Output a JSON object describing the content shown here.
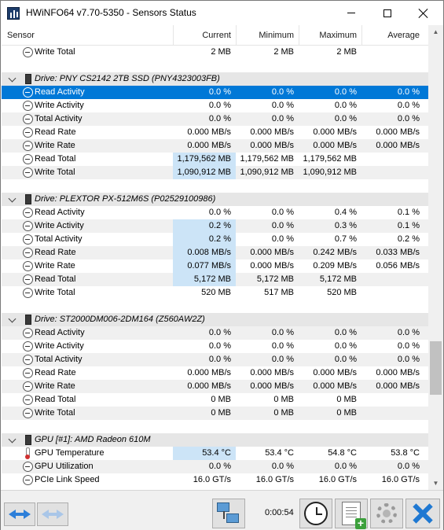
{
  "window": {
    "title": "HWiNFO64 v7.70-5350 - Sensors Status"
  },
  "columns": {
    "sensor": "Sensor",
    "current": "Current",
    "minimum": "Minimum",
    "maximum": "Maximum",
    "average": "Average"
  },
  "rows": [
    {
      "type": "item",
      "icon": "clock",
      "name": "Write Total",
      "cur": "2 MB",
      "min": "2 MB",
      "max": "2 MB",
      "avg": ""
    },
    {
      "type": "blank"
    },
    {
      "type": "group",
      "icon": "drive",
      "name": "Drive: PNY CS2142 2TB SSD (PNY4323003FB)"
    },
    {
      "type": "item",
      "icon": "clock",
      "name": "Read Activity",
      "cur": "0.0 %",
      "min": "0.0 %",
      "max": "0.0 %",
      "avg": "0.0 %",
      "selected": true
    },
    {
      "type": "item",
      "icon": "clock",
      "name": "Write Activity",
      "cur": "0.0 %",
      "min": "0.0 %",
      "max": "0.0 %",
      "avg": "0.0 %"
    },
    {
      "type": "item",
      "icon": "clock",
      "name": "Total Activity",
      "cur": "0.0 %",
      "min": "0.0 %",
      "max": "0.0 %",
      "avg": "0.0 %"
    },
    {
      "type": "item",
      "icon": "clock",
      "name": "Read Rate",
      "cur": "0.000 MB/s",
      "min": "0.000 MB/s",
      "max": "0.000 MB/s",
      "avg": "0.000 MB/s"
    },
    {
      "type": "item",
      "icon": "clock",
      "name": "Write Rate",
      "cur": "0.000 MB/s",
      "min": "0.000 MB/s",
      "max": "0.000 MB/s",
      "avg": "0.000 MB/s"
    },
    {
      "type": "item",
      "icon": "clock",
      "name": "Read Total",
      "cur": "1,179,562 MB",
      "min": "1,179,562 MB",
      "max": "1,179,562 MB",
      "avg": "",
      "hl": true
    },
    {
      "type": "item",
      "icon": "clock",
      "name": "Write Total",
      "cur": "1,090,912 MB",
      "min": "1,090,912 MB",
      "max": "1,090,912 MB",
      "avg": "",
      "hl": true
    },
    {
      "type": "blank"
    },
    {
      "type": "group",
      "icon": "drive",
      "name": "Drive: PLEXTOR PX-512M6S (P02529100986)"
    },
    {
      "type": "item",
      "icon": "clock",
      "name": "Read Activity",
      "cur": "0.0 %",
      "min": "0.0 %",
      "max": "0.4 %",
      "avg": "0.1 %"
    },
    {
      "type": "item",
      "icon": "clock",
      "name": "Write Activity",
      "cur": "0.2 %",
      "min": "0.0 %",
      "max": "0.3 %",
      "avg": "0.1 %",
      "hl": true
    },
    {
      "type": "item",
      "icon": "clock",
      "name": "Total Activity",
      "cur": "0.2 %",
      "min": "0.0 %",
      "max": "0.7 %",
      "avg": "0.2 %",
      "hl": true
    },
    {
      "type": "item",
      "icon": "clock",
      "name": "Read Rate",
      "cur": "0.008 MB/s",
      "min": "0.000 MB/s",
      "max": "0.242 MB/s",
      "avg": "0.033 MB/s",
      "hl": true
    },
    {
      "type": "item",
      "icon": "clock",
      "name": "Write Rate",
      "cur": "0.077 MB/s",
      "min": "0.000 MB/s",
      "max": "0.209 MB/s",
      "avg": "0.056 MB/s",
      "hl": true
    },
    {
      "type": "item",
      "icon": "clock",
      "name": "Read Total",
      "cur": "5,172 MB",
      "min": "5,172 MB",
      "max": "5,172 MB",
      "avg": "",
      "hl": true
    },
    {
      "type": "item",
      "icon": "clock",
      "name": "Write Total",
      "cur": "520 MB",
      "min": "517 MB",
      "max": "520 MB",
      "avg": ""
    },
    {
      "type": "blank"
    },
    {
      "type": "group",
      "icon": "drive",
      "name": "Drive: ST2000DM006-2DM164 (Z560AW2Z)"
    },
    {
      "type": "item",
      "icon": "clock",
      "name": "Read Activity",
      "cur": "0.0 %",
      "min": "0.0 %",
      "max": "0.0 %",
      "avg": "0.0 %"
    },
    {
      "type": "item",
      "icon": "clock",
      "name": "Write Activity",
      "cur": "0.0 %",
      "min": "0.0 %",
      "max": "0.0 %",
      "avg": "0.0 %"
    },
    {
      "type": "item",
      "icon": "clock",
      "name": "Total Activity",
      "cur": "0.0 %",
      "min": "0.0 %",
      "max": "0.0 %",
      "avg": "0.0 %"
    },
    {
      "type": "item",
      "icon": "clock",
      "name": "Read Rate",
      "cur": "0.000 MB/s",
      "min": "0.000 MB/s",
      "max": "0.000 MB/s",
      "avg": "0.000 MB/s"
    },
    {
      "type": "item",
      "icon": "clock",
      "name": "Write Rate",
      "cur": "0.000 MB/s",
      "min": "0.000 MB/s",
      "max": "0.000 MB/s",
      "avg": "0.000 MB/s"
    },
    {
      "type": "item",
      "icon": "clock",
      "name": "Read Total",
      "cur": "0 MB",
      "min": "0 MB",
      "max": "0 MB",
      "avg": ""
    },
    {
      "type": "item",
      "icon": "clock",
      "name": "Write Total",
      "cur": "0 MB",
      "min": "0 MB",
      "max": "0 MB",
      "avg": ""
    },
    {
      "type": "blank"
    },
    {
      "type": "group",
      "icon": "gpu",
      "name": "GPU [#1]: AMD Radeon 610M"
    },
    {
      "type": "item",
      "icon": "thermo",
      "name": "GPU Temperature",
      "cur": "53.4 °C",
      "min": "53.4 °C",
      "max": "54.8 °C",
      "avg": "53.8 °C",
      "hl": true
    },
    {
      "type": "item",
      "icon": "clock",
      "name": "GPU Utilization",
      "cur": "0.0 %",
      "min": "0.0 %",
      "max": "0.0 %",
      "avg": "0.0 %"
    },
    {
      "type": "item",
      "icon": "clock",
      "name": "PCIe Link Speed",
      "cur": "16.0 GT/s",
      "min": "16.0 GT/s",
      "max": "16.0 GT/s",
      "avg": "16.0 GT/s"
    }
  ],
  "toolbar": {
    "timer": "0:00:54"
  },
  "colors": {
    "selection": "#0078d7",
    "highlight": "#cce4f7",
    "group": "#e6e6e6",
    "alt_row": "#f0f0f0"
  }
}
